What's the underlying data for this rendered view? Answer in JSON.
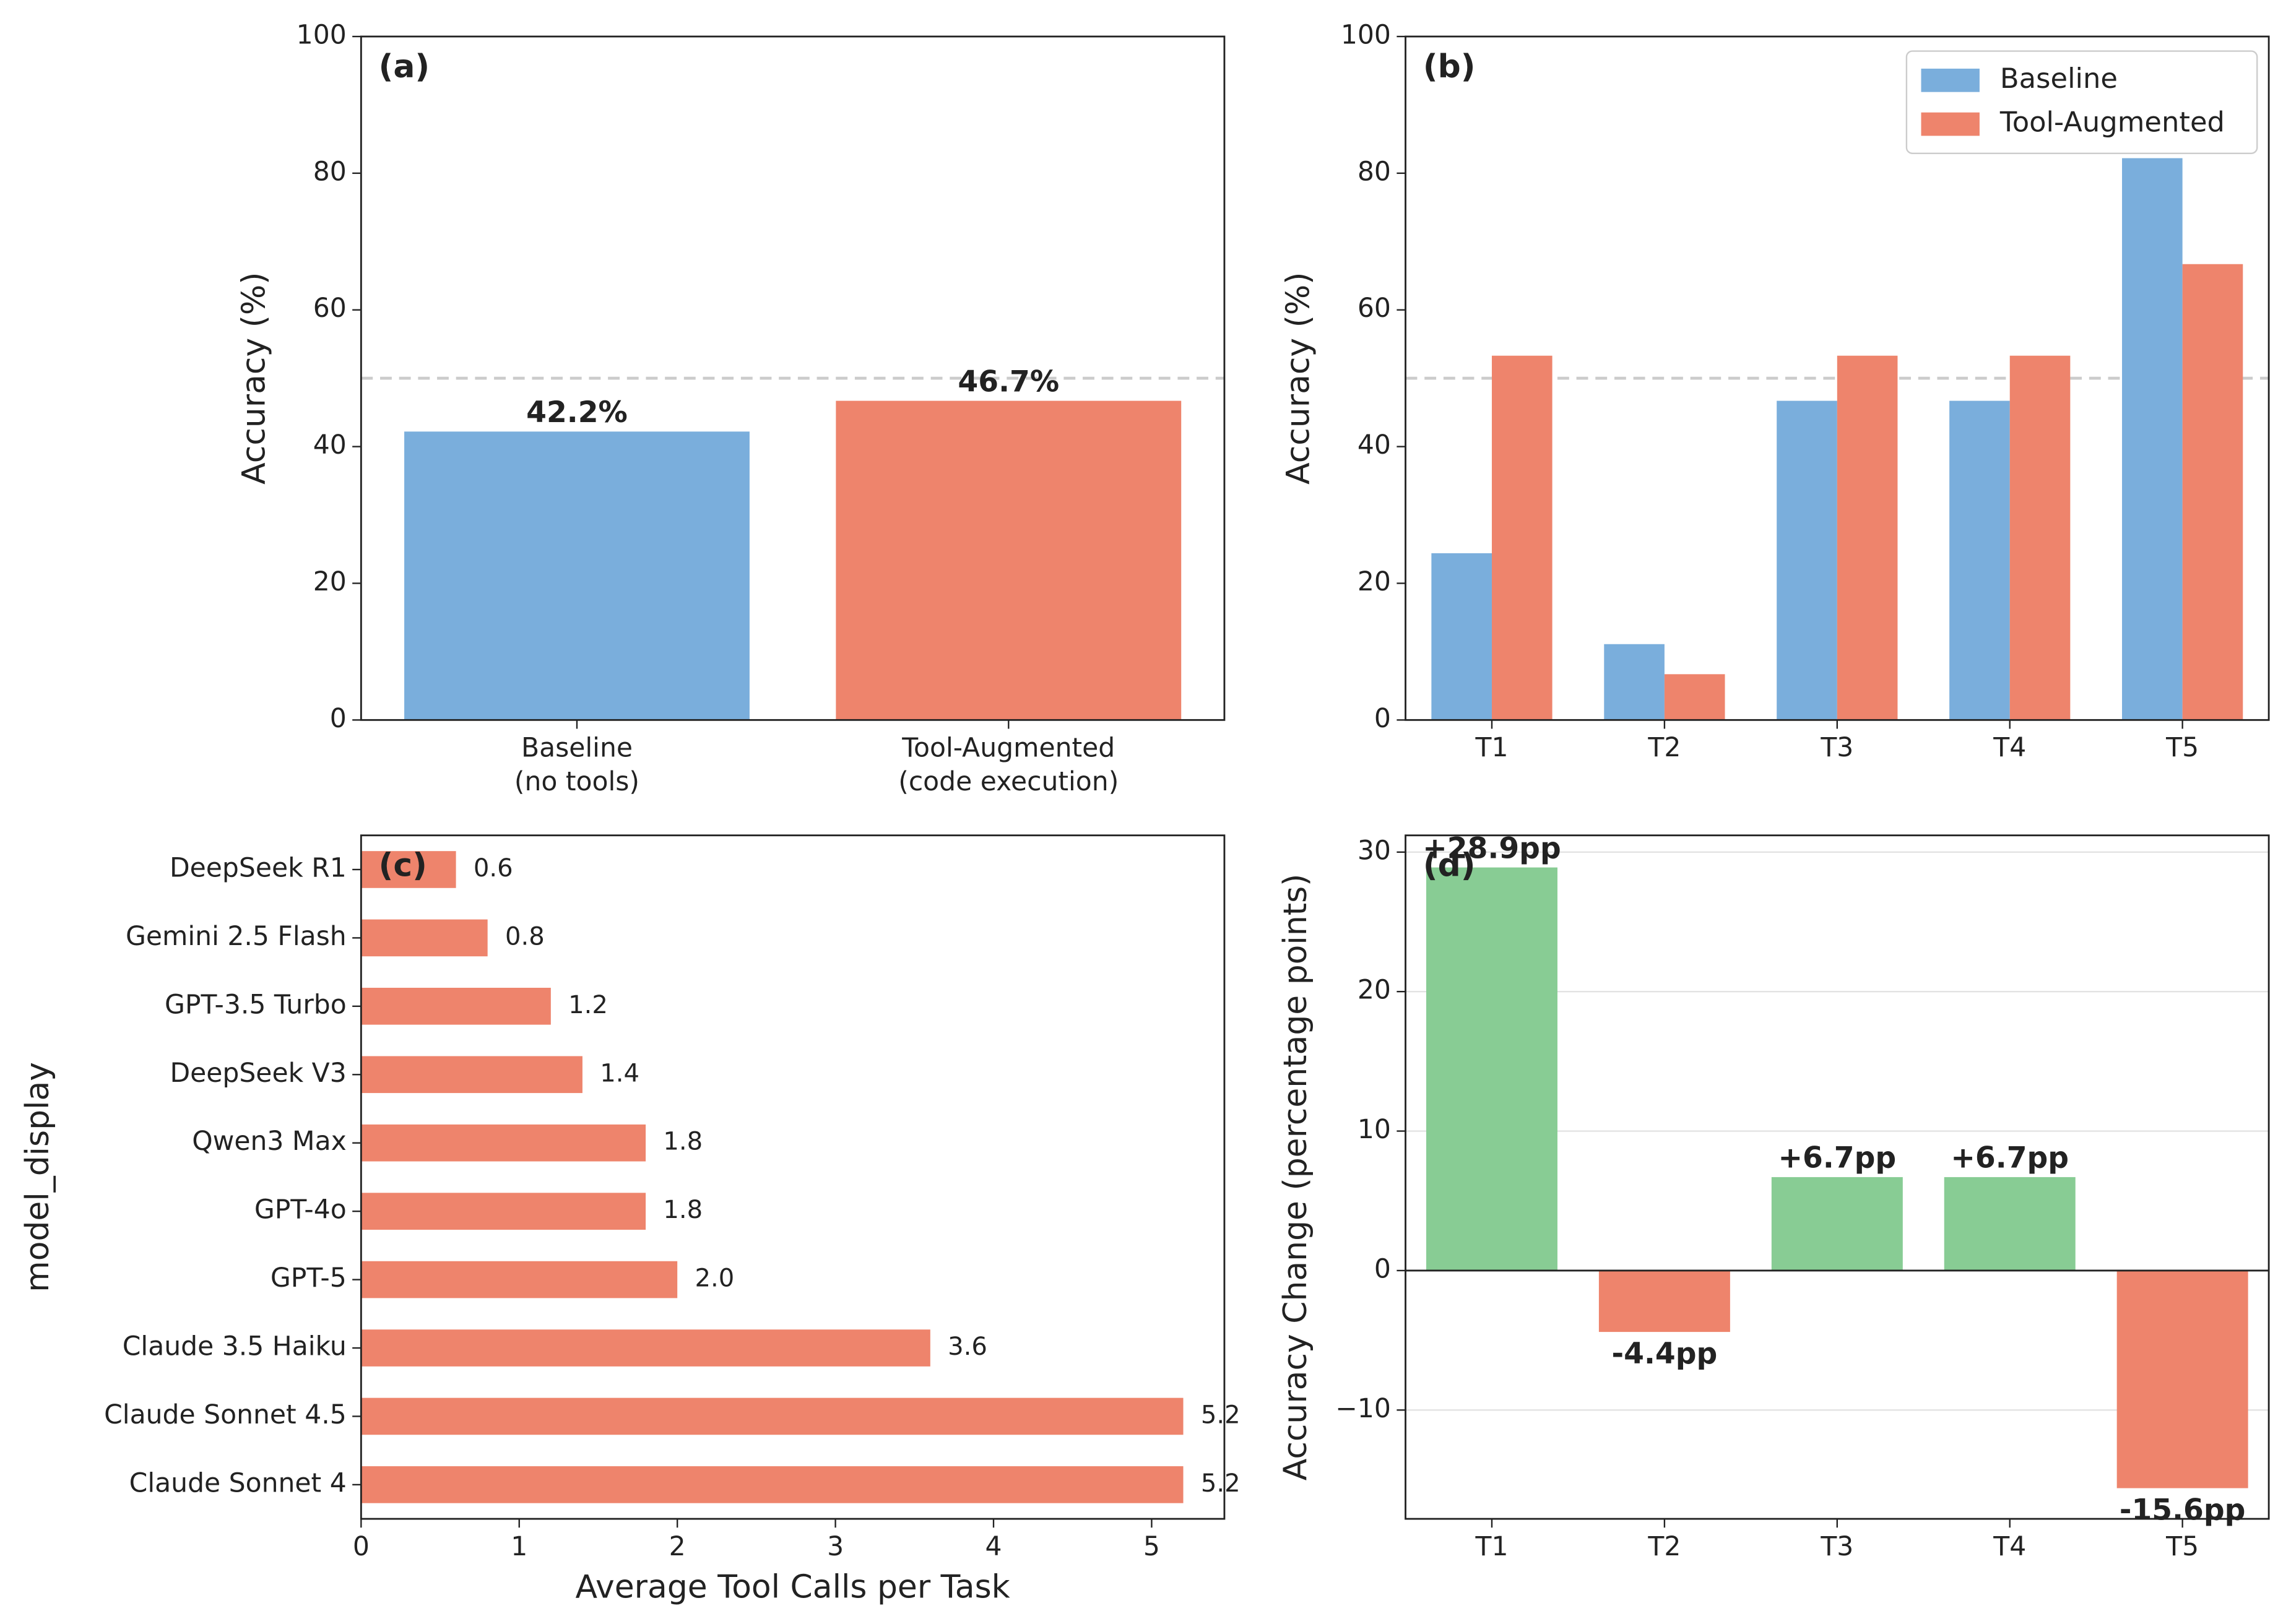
{
  "chart_data": [
    {
      "type": "bar",
      "panel_label": "(a)",
      "ylabel": "Accuracy (%)",
      "categories": [
        "Baseline\n(no tools)",
        "Tool-Augmented\n(code execution)"
      ],
      "values": [
        42.2,
        46.7
      ],
      "value_labels": [
        "42.2%",
        "46.7%"
      ],
      "colors": [
        "#7aaedc",
        "#ee846c"
      ],
      "ylim": [
        0,
        100
      ],
      "yticks": [
        0,
        20,
        40,
        60,
        80,
        100
      ],
      "reference_line": 50,
      "grid": false
    },
    {
      "type": "grouped_bar",
      "panel_label": "(b)",
      "ylabel": "Accuracy (%)",
      "categories": [
        "T1",
        "T2",
        "T3",
        "T4",
        "T5"
      ],
      "series": [
        {
          "name": "Baseline",
          "color": "#7aaedc",
          "values": [
            24.4,
            11.1,
            46.7,
            46.7,
            82.2
          ]
        },
        {
          "name": "Tool-Augmented",
          "color": "#ee846c",
          "values": [
            53.3,
            6.7,
            53.3,
            53.3,
            66.7
          ]
        }
      ],
      "ylim": [
        0,
        100
      ],
      "yticks": [
        0,
        20,
        40,
        60,
        80,
        100
      ],
      "reference_line": 50,
      "legend": "upper right",
      "grid": false
    },
    {
      "type": "hbar",
      "panel_label": "(c)",
      "ylabel": "model_display",
      "xlabel": "Average Tool Calls per Task",
      "categories": [
        "DeepSeek R1",
        "Gemini 2.5 Flash",
        "GPT-3.5 Turbo",
        "DeepSeek V3",
        "Qwen3 Max",
        "GPT-4o",
        "GPT-5",
        "Claude 3.5 Haiku",
        "Claude Sonnet 4.5",
        "Claude Sonnet 4"
      ],
      "values": [
        0.6,
        0.8,
        1.2,
        1.4,
        1.8,
        1.8,
        2.0,
        3.6,
        5.2,
        5.2
      ],
      "value_labels": [
        "0.6",
        "0.8",
        "1.2",
        "1.4",
        "1.8",
        "1.8",
        "2.0",
        "3.6",
        "5.2",
        "5.2"
      ],
      "color": "#ee846c",
      "xlim": [
        0,
        5.46
      ],
      "xticks": [
        0,
        1,
        2,
        3,
        4,
        5
      ],
      "grid": false
    },
    {
      "type": "bar",
      "panel_label": "(d)",
      "ylabel": "Accuracy Change (percentage points)",
      "categories": [
        "T1",
        "T2",
        "T3",
        "T4",
        "T5"
      ],
      "values": [
        28.9,
        -4.4,
        6.7,
        6.7,
        -15.6
      ],
      "value_labels": [
        "+28.9pp",
        "-4.4pp",
        "+6.7pp",
        "+6.7pp",
        "-15.6pp"
      ],
      "colors": [
        "#88cc94",
        "#ee846c",
        "#88cc94",
        "#88cc94",
        "#ee846c"
      ],
      "ylim": [
        -17.8,
        31.2
      ],
      "yticks": [
        {
          "value": -10,
          "label": "−10"
        },
        0,
        10,
        20,
        30
      ],
      "grid": true,
      "zero_line": true
    }
  ]
}
